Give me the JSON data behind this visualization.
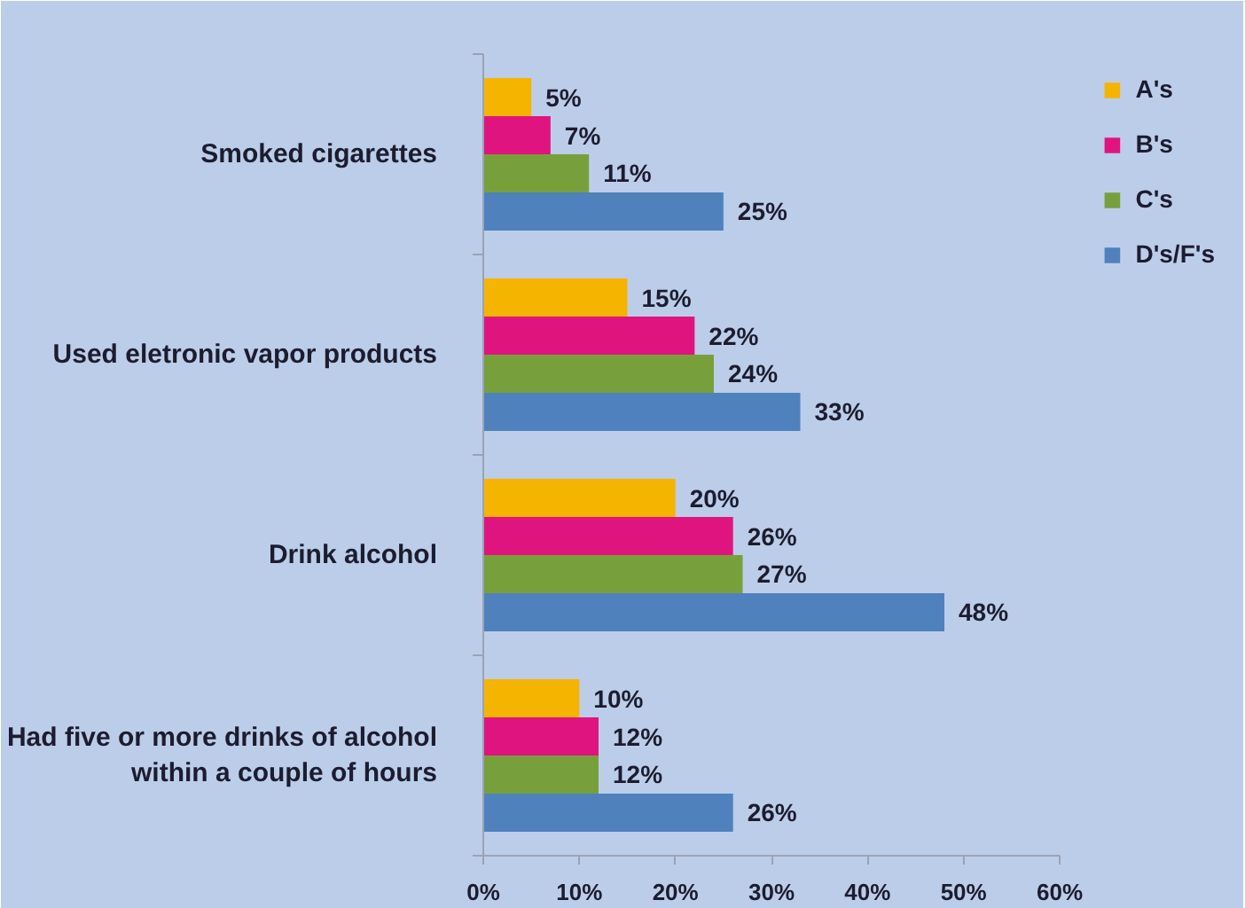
{
  "chart_data": {
    "type": "bar",
    "orientation": "horizontal",
    "categories": [
      "Smoked cigarettes",
      "Used eletronic vapor products",
      "Drink alcohol",
      "Had five or more drinks of alcohol within a couple of hours"
    ],
    "series": [
      {
        "name": "A's",
        "color": "#f5b400",
        "values": [
          5,
          15,
          20,
          10
        ],
        "value_labels": [
          "5%",
          "15%",
          "20%",
          "10%"
        ]
      },
      {
        "name": "B's",
        "color": "#e0147f",
        "values": [
          7,
          22,
          26,
          12
        ],
        "value_labels": [
          "7%",
          "22%",
          "26%",
          "12%"
        ]
      },
      {
        "name": "C's",
        "color": "#77a03c",
        "values": [
          11,
          24,
          27,
          12
        ],
        "value_labels": [
          "11%",
          "24%",
          "27%",
          "12%"
        ]
      },
      {
        "name": "D's/F's",
        "color": "#4f81bd",
        "values": [
          25,
          33,
          48,
          26
        ],
        "value_labels": [
          "25%",
          "33%",
          "48%",
          "26%"
        ]
      }
    ],
    "xlim": [
      0,
      60
    ],
    "xticks": [
      {
        "value": 0,
        "label": "0%"
      },
      {
        "value": 10,
        "label": "10%"
      },
      {
        "value": 20,
        "label": "20%"
      },
      {
        "value": 30,
        "label": "30%"
      },
      {
        "value": 40,
        "label": "40%"
      },
      {
        "value": 50,
        "label": "50%"
      },
      {
        "value": 60,
        "label": "60%"
      }
    ],
    "legend": "top right"
  }
}
